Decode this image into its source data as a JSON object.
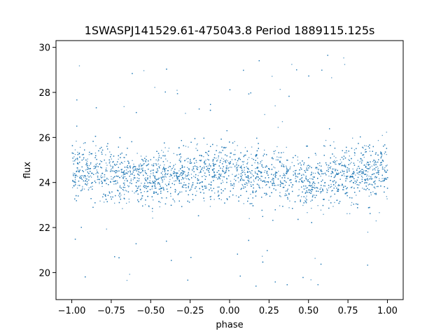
{
  "chart_data": {
    "type": "scatter",
    "title": "1SWASPJ141529.61-475043.8 Period 1889115.125s",
    "xlabel": "phase",
    "ylabel": "flux",
    "xlim": [
      -1.1,
      1.1
    ],
    "ylim": [
      18.8,
      30.3
    ],
    "xticks": [
      -1.0,
      -0.75,
      -0.5,
      -0.25,
      0.0,
      0.25,
      0.5,
      0.75,
      1.0
    ],
    "xtick_labels": [
      "−1.00",
      "−0.75",
      "−0.50",
      "−0.25",
      "0.00",
      "0.25",
      "0.50",
      "0.75",
      "1.00"
    ],
    "yticks": [
      20,
      22,
      24,
      26,
      28,
      30
    ],
    "ytick_labels": [
      "20",
      "22",
      "24",
      "26",
      "28",
      "30"
    ],
    "grid": false,
    "legend": "none",
    "marker_color": "#1f77b4",
    "series": [
      {
        "phase_range": [
          -1.0,
          1.0
        ],
        "flux_typical_range": [
          22.5,
          26.5
        ],
        "flux_core_center": 24.6,
        "flux_outlier_range": [
          19.3,
          29.7
        ],
        "x_profile": [
          -1.0,
          -0.75,
          -0.5,
          -0.25,
          0.0,
          0.25,
          0.5,
          0.75,
          1.0
        ],
        "y_center_profile": [
          24.6,
          24.4,
          24.2,
          24.4,
          24.6,
          24.3,
          24.1,
          24.4,
          24.6
        ]
      }
    ]
  }
}
